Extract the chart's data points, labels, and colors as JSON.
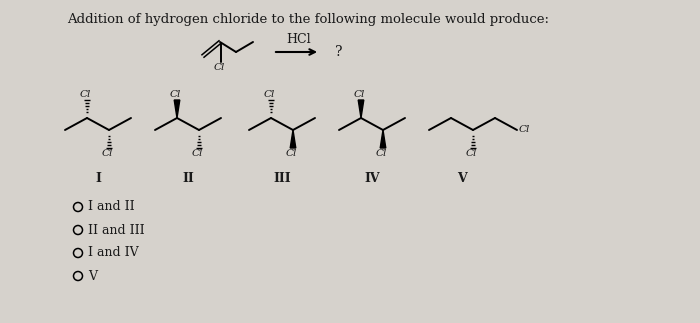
{
  "title": "Addition of hydrogen chloride to the following molecule would produce:",
  "background_color": "#d6d2cc",
  "text_color": "#1a1a1a",
  "reagent": "HCl",
  "question_mark": "?",
  "choices": [
    "I and II",
    "II and III",
    "I and IV",
    "V"
  ],
  "roman_numerals": [
    "I",
    "II",
    "III",
    "IV",
    "V"
  ],
  "figsize": [
    7.0,
    3.23
  ],
  "dpi": 100
}
